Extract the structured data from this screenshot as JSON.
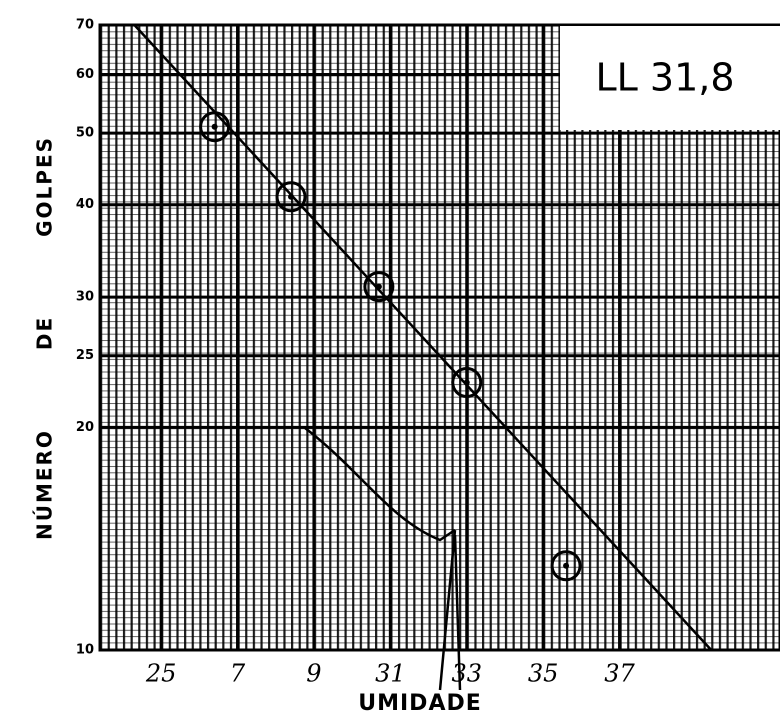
{
  "chart_data": {
    "type": "scatter",
    "y_label": "NÚMERO DE GOLPES",
    "x_label": "UMIDADE",
    "annotation": "LL 31,8",
    "log_y": true,
    "grid": true,
    "xlim": [
      23.4,
      41.2
    ],
    "ylim": [
      10,
      70
    ],
    "yticks": [
      10,
      20,
      25,
      30,
      40,
      50,
      60,
      70
    ],
    "xticks": [
      25,
      {
        "value": 27,
        "label": "7"
      },
      {
        "value": 29,
        "label": "9"
      },
      31,
      33,
      35,
      37
    ],
    "series": [
      {
        "x": [
          26.4,
          28.4,
          30.7,
          33.0,
          35.6
        ],
        "values": [
          51,
          41,
          31,
          23,
          13
        ],
        "color": "#000"
      }
    ],
    "fit_line": {
      "x": [
        24.3,
        39.4
      ],
      "values": [
        70,
        10
      ],
      "color": "#000"
    }
  }
}
